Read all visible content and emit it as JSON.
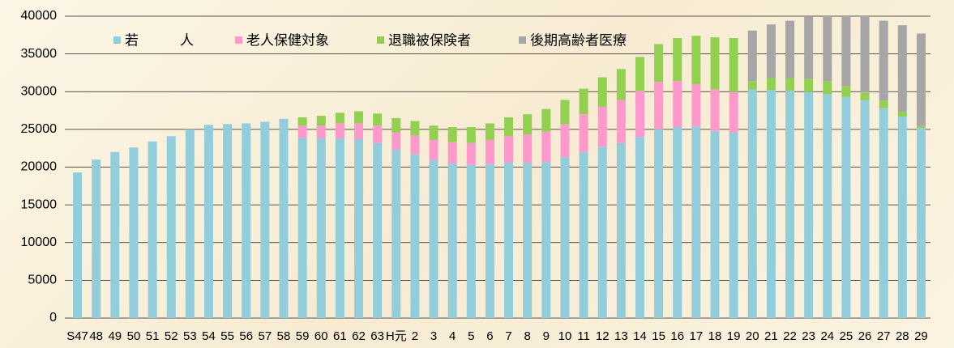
{
  "chart_data": {
    "type": "stacked_bar",
    "categories": [
      "S47",
      "48",
      "49",
      "50",
      "51",
      "52",
      "53",
      "54",
      "55",
      "56",
      "57",
      "58",
      "59",
      "60",
      "61",
      "62",
      "63",
      "H元",
      "2",
      "3",
      "4",
      "5",
      "6",
      "7",
      "8",
      "9",
      "10",
      "11",
      "12",
      "13",
      "14",
      "15",
      "16",
      "17",
      "18",
      "19",
      "20",
      "21",
      "22",
      "23",
      "24",
      "25",
      "26",
      "27",
      "28",
      "29"
    ],
    "series": [
      {
        "name": "若　　　人",
        "color": "#92cddc",
        "values": [
          19300,
          21000,
          22000,
          22600,
          23400,
          24100,
          25000,
          25600,
          25700,
          25800,
          26000,
          26400,
          23900,
          23800,
          23800,
          23700,
          23200,
          22300,
          21700,
          20900,
          20500,
          20300,
          20400,
          20600,
          20600,
          20700,
          21300,
          22000,
          22700,
          23200,
          24000,
          25000,
          25300,
          25400,
          24800,
          24600,
          30300,
          30200,
          30100,
          30000,
          29700,
          29300,
          28900,
          27800,
          26700,
          25200
        ]
      },
      {
        "name": "老人保健対象",
        "color": "#ff99cc",
        "values": [
          null,
          null,
          null,
          null,
          null,
          null,
          null,
          null,
          null,
          null,
          null,
          null,
          1600,
          1700,
          2000,
          2100,
          2300,
          2300,
          2500,
          2700,
          2800,
          2900,
          3200,
          3500,
          3700,
          4000,
          4400,
          5000,
          5300,
          5700,
          6100,
          6300,
          6100,
          5600,
          5500,
          5400,
          null,
          null,
          null,
          null,
          null,
          null,
          null,
          null,
          null,
          null
        ]
      },
      {
        "name": "退職被保険者",
        "color": "#92d050",
        "values": [
          null,
          null,
          null,
          null,
          null,
          null,
          null,
          null,
          null,
          null,
          null,
          null,
          1100,
          1300,
          1400,
          1600,
          1600,
          1900,
          1900,
          1900,
          2000,
          2100,
          2200,
          2500,
          2700,
          3000,
          3200,
          3400,
          3900,
          4100,
          4500,
          5000,
          5700,
          6400,
          6900,
          7100,
          1100,
          1600,
          1700,
          1700,
          1700,
          1400,
          1000,
          1000,
          600,
          300
        ]
      },
      {
        "name": "後期高齢者医療",
        "color": "#a6a6a6",
        "values": [
          null,
          null,
          null,
          null,
          null,
          null,
          null,
          null,
          null,
          null,
          null,
          null,
          null,
          null,
          null,
          null,
          null,
          null,
          null,
          null,
          null,
          null,
          null,
          null,
          null,
          null,
          null,
          null,
          null,
          null,
          null,
          null,
          null,
          null,
          null,
          null,
          6700,
          7100,
          7600,
          8200,
          8600,
          9300,
          10100,
          10600,
          11500,
          12200
        ]
      }
    ],
    "ylim": [
      0,
      40000
    ],
    "yticks": [
      0,
      5000,
      10000,
      15000,
      20000,
      25000,
      30000,
      35000,
      40000
    ],
    "grid": true
  }
}
